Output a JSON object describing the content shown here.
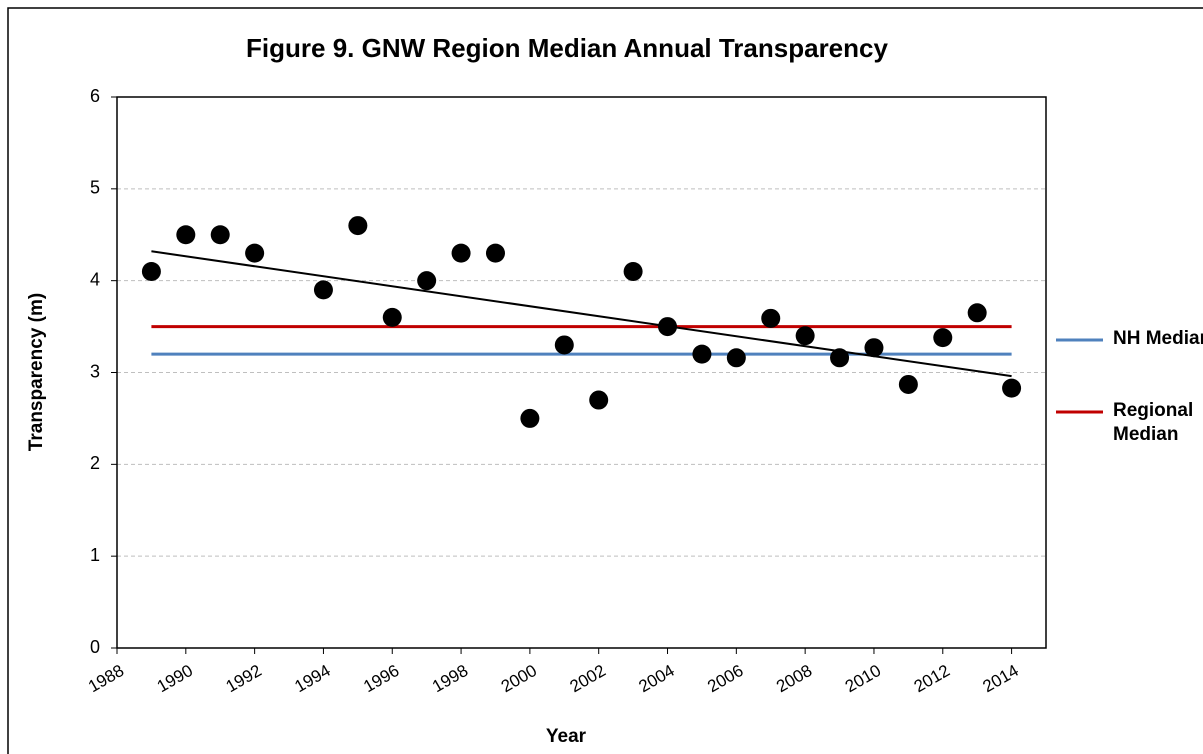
{
  "chart_data": {
    "type": "scatter",
    "title": "Figure 9. GNW Region Median Annual Transparency",
    "xlabel": "Year",
    "ylabel": "Transparency (m)",
    "xlim": [
      1988,
      2015
    ],
    "xticks": [
      1988,
      1990,
      1992,
      1994,
      1996,
      1998,
      2000,
      2002,
      2004,
      2006,
      2008,
      2010,
      2012,
      2014
    ],
    "ylim": [
      0,
      6
    ],
    "yticks": [
      0,
      1,
      2,
      3,
      4,
      5,
      6
    ],
    "grid": true,
    "color": "#000000",
    "x": [
      1989,
      1990,
      1991,
      1992,
      1994,
      1995,
      1996,
      1997,
      1998,
      1999,
      2000,
      2001,
      2002,
      2003,
      2004,
      2005,
      2006,
      2007,
      2008,
      2009,
      2010,
      2011,
      2012,
      2013,
      2014
    ],
    "values": [
      4.1,
      4.5,
      4.5,
      4.3,
      3.9,
      4.6,
      3.6,
      4.0,
      4.3,
      4.3,
      2.5,
      3.3,
      2.7,
      4.1,
      3.5,
      3.2,
      3.16,
      3.59,
      3.4,
      3.16,
      3.27,
      2.87,
      3.38,
      3.65,
      2.83
    ],
    "series": [
      {
        "name": "NH Median",
        "color": "#4f81bd",
        "x": [
          1989,
          2014
        ],
        "values": [
          3.2,
          3.2
        ]
      },
      {
        "name": "Regional Median",
        "color": "#c00000",
        "x": [
          1989,
          2014
        ],
        "values": [
          3.5,
          3.5
        ]
      }
    ],
    "trendline": {
      "color": "#000000",
      "x": [
        1989,
        2014
      ],
      "values": [
        4.32,
        2.96
      ]
    }
  }
}
